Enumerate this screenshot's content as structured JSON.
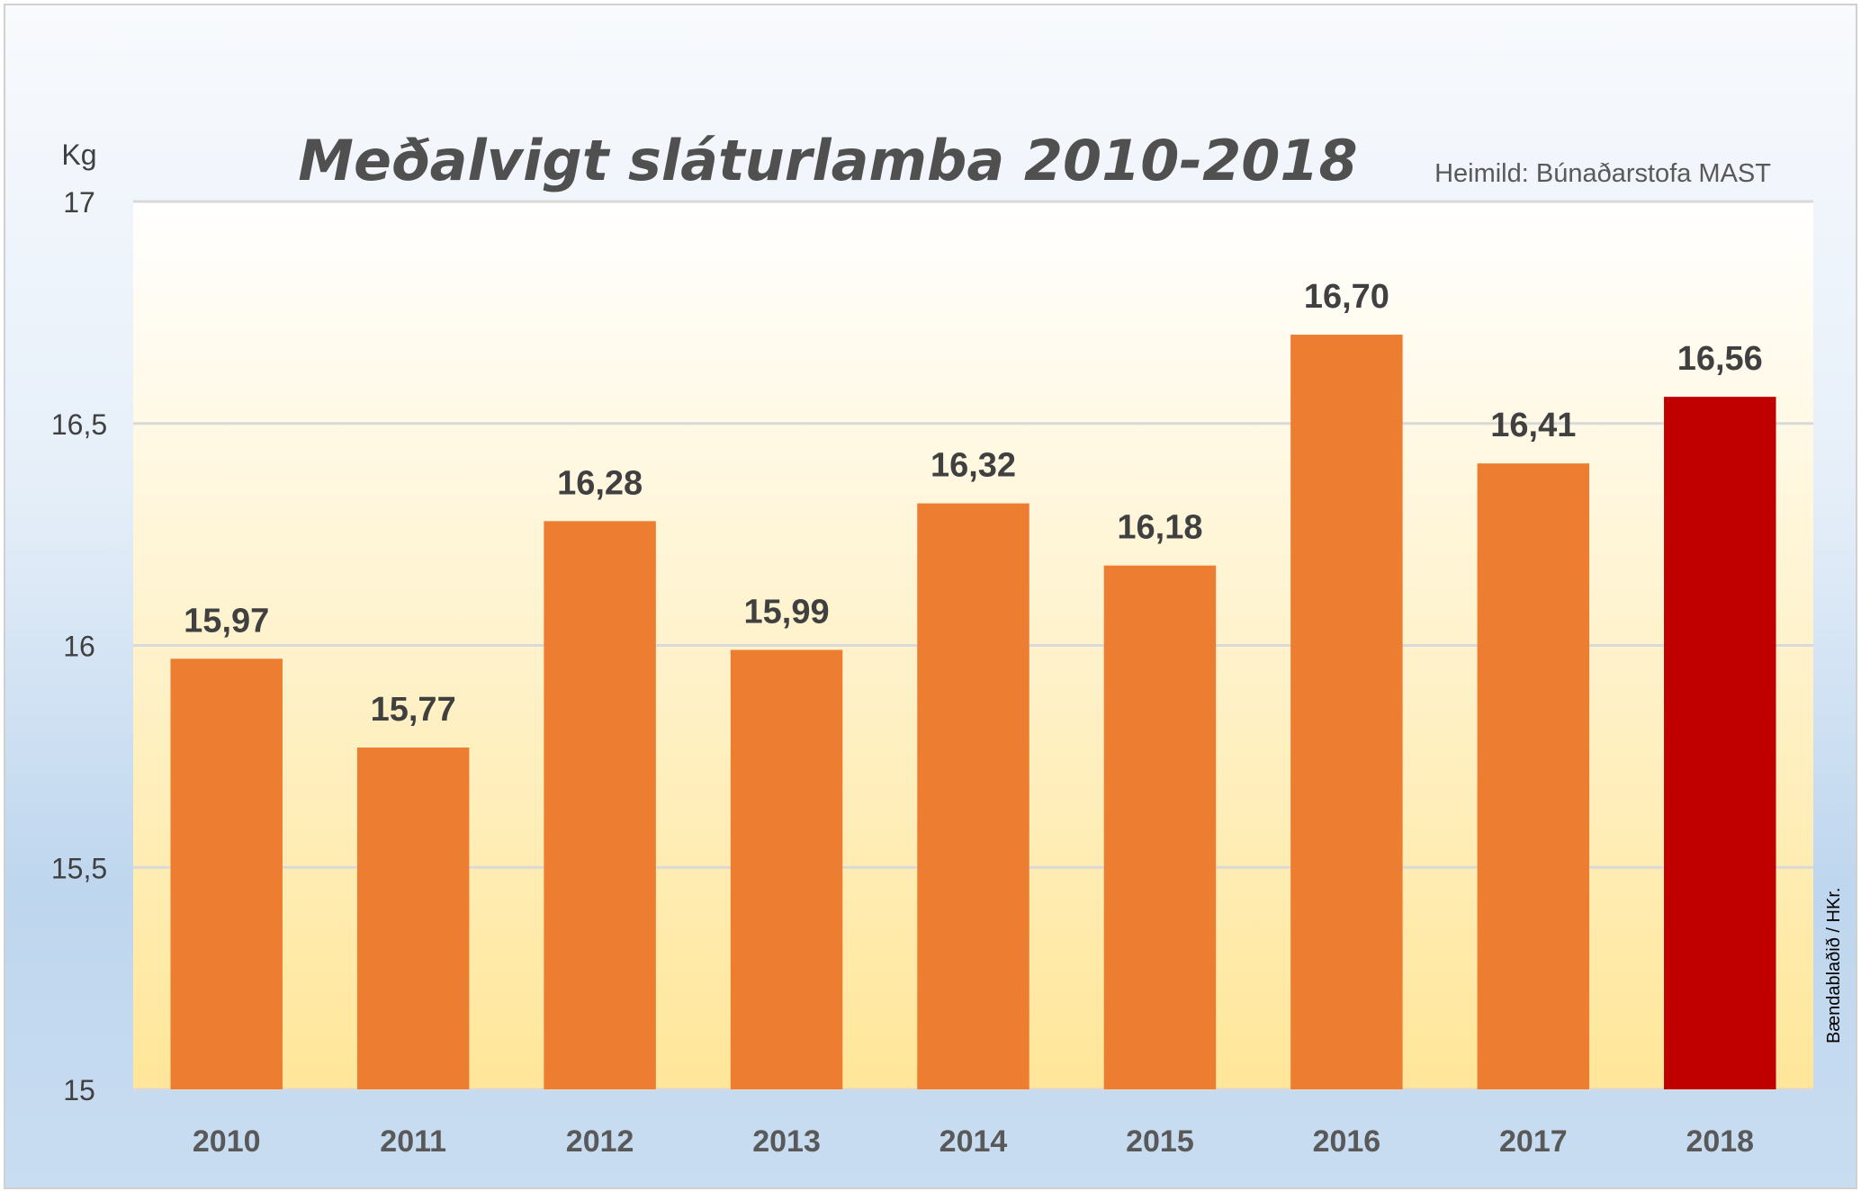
{
  "chart_data": {
    "type": "bar",
    "title": "Meðalvigt sláturlamba 2010-2018",
    "source": "Heimild: Búnaðarstofa MAST",
    "credit": "Bændablaðið / HKr.",
    "ylabel": "Kg",
    "xlabel": "",
    "ylim": [
      15,
      17
    ],
    "yticks": [
      "15",
      "15,5",
      "16",
      "16,5",
      "17"
    ],
    "ytick_values": [
      15,
      15.5,
      16,
      16.5,
      17
    ],
    "grid": true,
    "categories": [
      "2010",
      "2011",
      "2012",
      "2013",
      "2014",
      "2015",
      "2016",
      "2017",
      "2018"
    ],
    "values": [
      15.97,
      15.77,
      16.28,
      15.99,
      16.32,
      16.18,
      16.7,
      16.41,
      16.56
    ],
    "data_labels": [
      "15,97",
      "15,77",
      "16,28",
      "15,99",
      "16,32",
      "16,18",
      "16,70",
      "16,41",
      "16,56"
    ],
    "colors": {
      "bar": "#ed7d31",
      "highlight": "#c00000",
      "highlight_category": "2018",
      "plot_top": "#ffffff",
      "plot_bottom": "#ffe699",
      "grid": "#d9d9d9"
    }
  }
}
